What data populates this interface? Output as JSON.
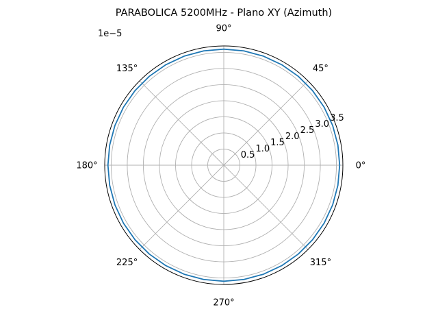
{
  "chart_data": {
    "type": "line",
    "projection": "polar",
    "title": "PARABOLICA 5200MHz - Plano XY (Azimuth)",
    "radial_offset_label": "1e−5",
    "angle_ticks": [
      {
        "deg": 0,
        "label": "0°"
      },
      {
        "deg": 45,
        "label": "45°"
      },
      {
        "deg": 90,
        "label": "90°"
      },
      {
        "deg": 135,
        "label": "135°"
      },
      {
        "deg": 180,
        "label": "180°"
      },
      {
        "deg": 225,
        "label": "225°"
      },
      {
        "deg": 270,
        "label": "270°"
      },
      {
        "deg": 315,
        "label": "315°"
      }
    ],
    "radial_ticks": [
      {
        "value": 0.5,
        "label": "0.5"
      },
      {
        "value": 1.0,
        "label": "1.0"
      },
      {
        "value": 1.5,
        "label": "1.5"
      },
      {
        "value": 2.0,
        "label": "2.0"
      },
      {
        "value": 2.5,
        "label": "2.5"
      },
      {
        "value": 3.0,
        "label": "3.0"
      },
      {
        "value": 3.5,
        "label": "3.5"
      }
    ],
    "rlim": [
      0,
      3.7
    ],
    "radial_scale_factor": "1e-5",
    "grid": true,
    "series": [
      {
        "color": "#1f77b4",
        "theta_deg": [
          0,
          10,
          20,
          30,
          40,
          50,
          60,
          70,
          80,
          90,
          100,
          110,
          120,
          130,
          140,
          150,
          160,
          170,
          180,
          190,
          200,
          210,
          220,
          230,
          240,
          250,
          260,
          270,
          280,
          290,
          300,
          310,
          320,
          330,
          340,
          350,
          360
        ],
        "r": [
          3.6,
          3.6,
          3.6,
          3.6,
          3.6,
          3.6,
          3.6,
          3.6,
          3.6,
          3.6,
          3.6,
          3.6,
          3.6,
          3.6,
          3.6,
          3.6,
          3.6,
          3.6,
          3.6,
          3.6,
          3.6,
          3.6,
          3.6,
          3.6,
          3.6,
          3.6,
          3.6,
          3.6,
          3.6,
          3.6,
          3.6,
          3.6,
          3.6,
          3.6,
          3.6,
          3.6,
          3.6
        ]
      }
    ]
  }
}
